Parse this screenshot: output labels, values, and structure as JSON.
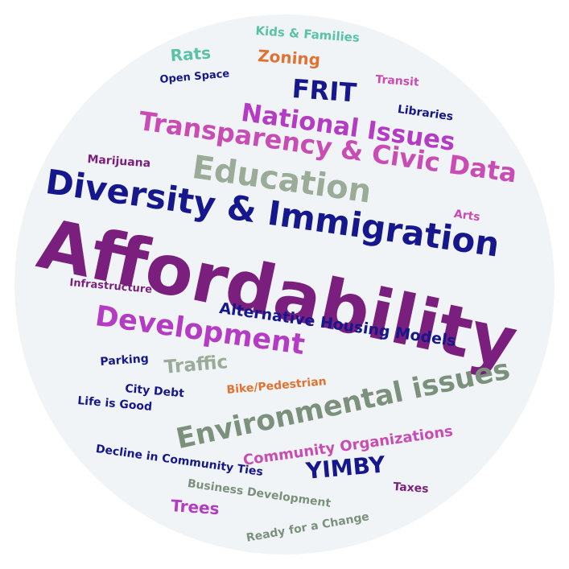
{
  "colors": {
    "background": "#ffffff",
    "circle": "#f1f4f7",
    "purple_dark": "#7a1f7d",
    "navy": "#16178c",
    "magenta": "#c94cb4",
    "violet": "#b43cc4",
    "sage": "#9aab98",
    "green_gray": "#7b917b",
    "teal": "#5ac2a8",
    "orange": "#e07332"
  },
  "words": {
    "kids_families": "Kids & Families",
    "rats": "Rats",
    "zoning": "Zoning",
    "transit": "Transit",
    "open_space": "Open Space",
    "frit": "FRIT",
    "libraries": "Libraries",
    "national_issues": "National Issues",
    "transparency": "Transparency & Civic Data",
    "marijuana": "Marijuana",
    "education": "Education",
    "diversity": "Diversity & Immigration",
    "arts": "Arts",
    "affordability": "Affordability",
    "infrastructure": "Infrastructure",
    "alternative_housing": "Alternative Housing Models",
    "development": "Development",
    "parking": "Parking",
    "traffic": "Traffic",
    "bike_pedestrian": "Bike/Pedestrian",
    "city_debt": "City Debt",
    "environmental": "Environmental issues",
    "life_is_good": "Life is Good",
    "community_orgs": "Community Organizations",
    "decline": "Decline in Community Ties",
    "yimby": "YIMBY",
    "taxes": "Taxes",
    "business_dev": "Business Development",
    "trees": "Trees",
    "ready": "Ready for a Change"
  }
}
